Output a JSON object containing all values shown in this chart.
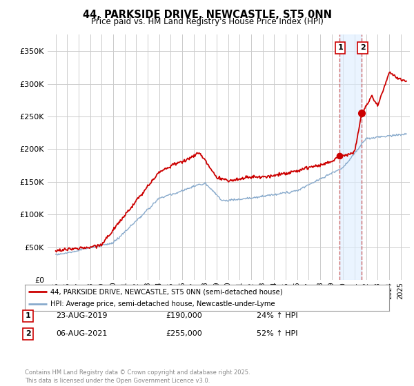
{
  "title": "44, PARKSIDE DRIVE, NEWCASTLE, ST5 0NN",
  "subtitle": "Price paid vs. HM Land Registry's House Price Index (HPI)",
  "legend_line1": "44, PARKSIDE DRIVE, NEWCASTLE, ST5 0NN (semi-detached house)",
  "legend_line2": "HPI: Average price, semi-detached house, Newcastle-under-Lyme",
  "footer": "Contains HM Land Registry data © Crown copyright and database right 2025.\nThis data is licensed under the Open Government Licence v3.0.",
  "annotation1": {
    "num": "1",
    "date": "23-AUG-2019",
    "price": "£190,000",
    "pct": "24% ↑ HPI"
  },
  "annotation2": {
    "num": "2",
    "date": "06-AUG-2021",
    "price": "£255,000",
    "pct": "52% ↑ HPI"
  },
  "line_color_red": "#cc0000",
  "line_color_blue": "#88aacc",
  "dashed_color": "#cc6666",
  "shade_color": "#ddeeff",
  "background_color": "#ffffff",
  "grid_color": "#cccccc",
  "ylim": [
    0,
    375000
  ],
  "yticks": [
    0,
    50000,
    100000,
    150000,
    200000,
    250000,
    300000,
    350000
  ],
  "ytick_labels": [
    "£0",
    "£50K",
    "£100K",
    "£150K",
    "£200K",
    "£250K",
    "£300K",
    "£350K"
  ],
  "year_start": 1995,
  "year_end": 2025,
  "marker1_year": 2019.65,
  "marker1_price": 190000,
  "marker2_year": 2021.6,
  "marker2_price": 255000,
  "xlim_left": 1994.3,
  "xlim_right": 2025.8
}
